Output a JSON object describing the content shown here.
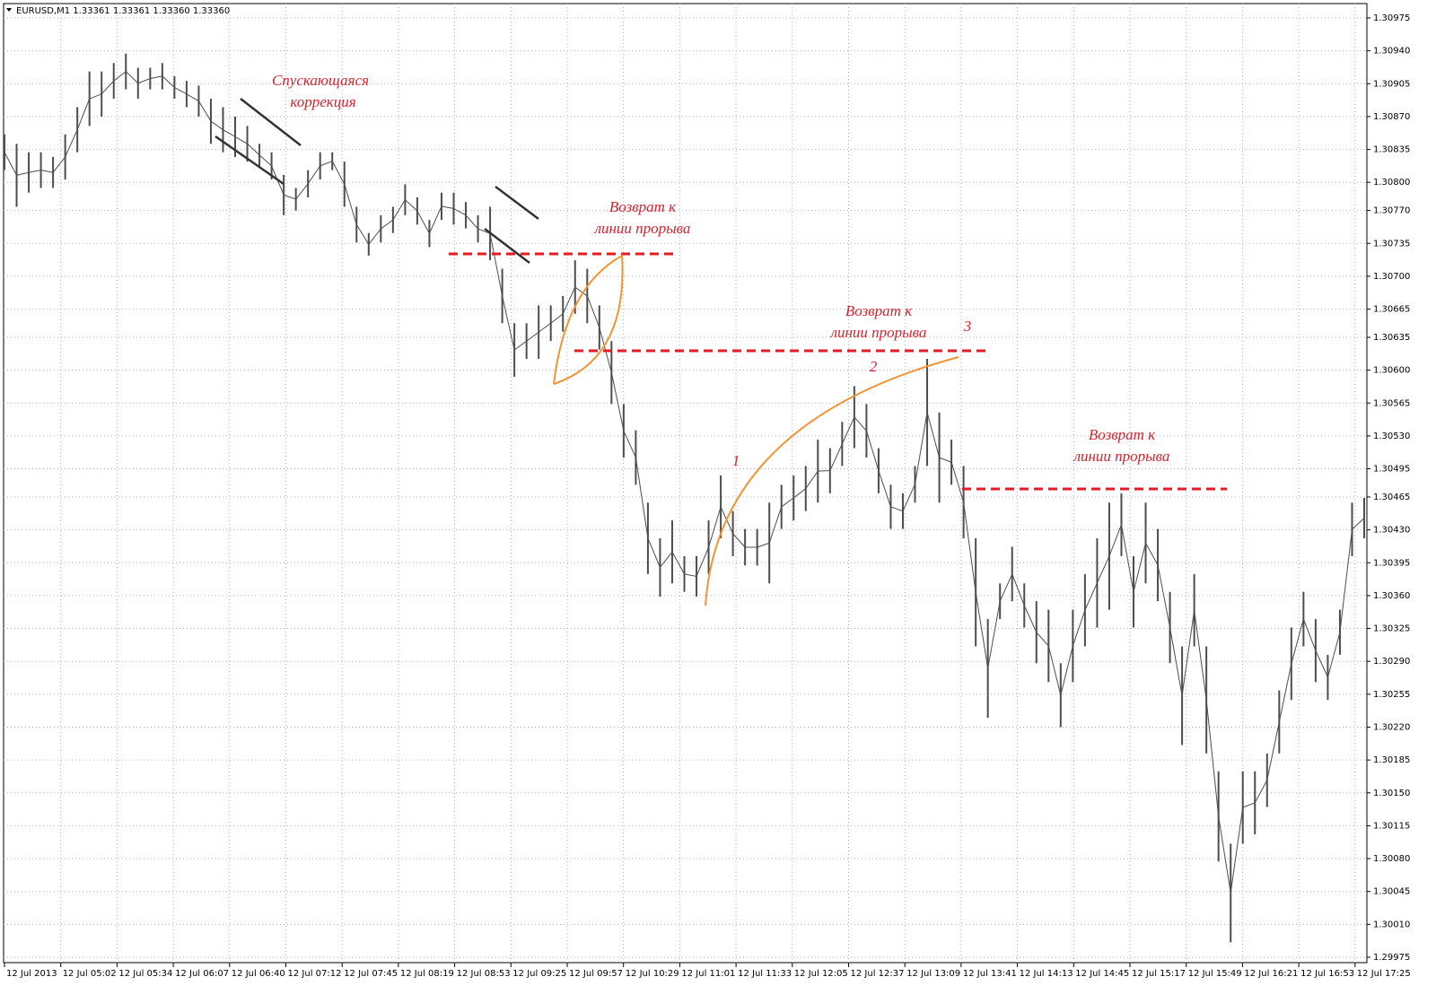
{
  "chart_data": {
    "type": "ohlc",
    "title": "EURUSD,M1  1.33361 1.33361 1.33360 1.33360",
    "color": "#4d4d4d",
    "grid": true,
    "ylim": [
      1.29975,
      1.30975
    ],
    "yticks": [
      1.30975,
      {
        "value": 1.3094,
        "label": "1.30940"
      },
      1.30905,
      {
        "value": 1.3087,
        "label": "1.30870"
      },
      1.30835,
      {
        "value": 1.308,
        "label": "1.30800"
      },
      {
        "value": 1.3077,
        "label": "1.30770"
      },
      1.30735,
      {
        "value": 1.307,
        "label": "1.30700"
      },
      1.30665,
      1.30635,
      {
        "value": 1.306,
        "label": "1.30600"
      },
      1.30565,
      {
        "value": 1.3053,
        "label": "1.30530"
      },
      1.30495,
      1.30465,
      {
        "value": 1.3043,
        "label": "1.30430"
      },
      1.30395,
      {
        "value": 1.3036,
        "label": "1.30360"
      },
      1.30325,
      {
        "value": 1.3029,
        "label": "1.30290"
      },
      1.30255,
      {
        "value": 1.3022,
        "label": "1.30220"
      },
      1.30185,
      {
        "value": 1.3015,
        "label": "1.30150"
      },
      1.30115,
      {
        "value": 1.3008,
        "label": "1.30080"
      },
      1.30045,
      {
        "value": 1.3001,
        "label": "1.30010"
      },
      1.29975
    ],
    "categories": [
      "12 Jul 2013",
      "12 Jul 05:02",
      "12 Jul 05:34",
      "12 Jul 06:07",
      "12 Jul 06:40",
      "12 Jul 07:12",
      "12 Jul 07:45",
      "12 Jul 08:19",
      "12 Jul 08:53",
      "12 Jul 09:25",
      "12 Jul 09:57",
      "12 Jul 10:29",
      "12 Jul 11:01",
      "12 Jul 11:33",
      "12 Jul 12:05",
      "12 Jul 12:37",
      "12 Jul 13:09",
      "12 Jul 13:41",
      "12 Jul 14:13",
      "12 Jul 14:45",
      "12 Jul 15:17",
      "12 Jul 15:49",
      "12 Jul 16:21",
      "12 Jul 16:53",
      "12 Jul 17:25"
    ],
    "high": [
      1.30851,
      1.30841,
      1.30832,
      1.30832,
      1.30827,
      1.30851,
      1.3088,
      1.30918,
      1.30918,
      1.30927,
      1.30937,
      1.30922,
      1.30922,
      1.30927,
      1.30913,
      1.30908,
      1.30903,
      1.30889,
      1.3088,
      1.3087,
      1.3086,
      1.30841,
      1.30832,
      1.30808,
      1.30794,
      1.30813,
      1.30832,
      1.30832,
      1.30822,
      1.30774,
      1.30746,
      1.30765,
      1.30774,
      1.30798,
      1.30784,
      1.3076,
      1.30789,
      1.30789,
      1.30779,
      1.30765,
      1.30774,
      1.30708,
      1.3065,
      1.3065,
      1.30669,
      1.30669,
      1.30679,
      1.30717,
      1.30708,
      1.30669,
      1.30631,
      1.30564,
      1.30536,
      1.30459,
      1.30421,
      1.3044,
      1.30402,
      1.30402,
      1.3044,
      1.30488,
      1.3045,
      1.30431,
      1.30431,
      1.30459,
      1.30478,
      1.30488,
      1.30498,
      1.30526,
      1.30517,
      1.30545,
      1.30583,
      1.30564,
      1.30517,
      1.30478,
      1.30469,
      1.30498,
      1.30612,
      1.30555,
      1.30526,
      1.30498,
      1.30421,
      1.30335,
      1.30373,
      1.30412,
      1.30373,
      1.30354,
      1.30345,
      1.30288,
      1.30345,
      1.30383,
      1.30421,
      1.30459,
      1.30469,
      1.30402,
      1.30459,
      1.30431,
      1.30364,
      1.30306,
      1.30383,
      1.30306,
      1.30173,
      1.30096,
      1.30173,
      1.30173,
      1.30192,
      1.30259,
      1.30326,
      1.30364,
      1.30335,
      1.30297,
      1.30345,
      1.30459,
      1.30464
    ],
    "low": [
      1.30813,
      1.30774,
      1.30789,
      1.30794,
      1.30794,
      1.30803,
      1.30832,
      1.3086,
      1.3087,
      1.30889,
      1.30899,
      1.30889,
      1.30899,
      1.30899,
      1.30889,
      1.3088,
      1.3087,
      1.30841,
      1.30832,
      1.30827,
      1.30822,
      1.30817,
      1.30803,
      1.30765,
      1.3077,
      1.30784,
      1.30803,
      1.30813,
      1.30774,
      1.30736,
      1.30722,
      1.30736,
      1.30746,
      1.30765,
      1.30755,
      1.30731,
      1.3076,
      1.30755,
      1.30751,
      1.30736,
      1.30717,
      1.3065,
      1.30593,
      1.30612,
      1.30612,
      1.30631,
      1.30641,
      1.3066,
      1.3065,
      1.30622,
      1.30564,
      1.30507,
      1.30478,
      1.30383,
      1.30359,
      1.30373,
      1.30364,
      1.30359,
      1.30383,
      1.30421,
      1.30402,
      1.30392,
      1.30392,
      1.30373,
      1.30431,
      1.3044,
      1.3045,
      1.30459,
      1.30469,
      1.30498,
      1.30517,
      1.30507,
      1.30469,
      1.30431,
      1.30431,
      1.30459,
      1.30498,
      1.30459,
      1.30478,
      1.30421,
      1.30306,
      1.3023,
      1.30335,
      1.30354,
      1.30326,
      1.30288,
      1.30268,
      1.3022,
      1.30268,
      1.30306,
      1.30326,
      1.30345,
      1.30402,
      1.30326,
      1.30373,
      1.30354,
      1.30288,
      1.30201,
      1.30306,
      1.30192,
      1.30077,
      1.29991,
      1.30096,
      1.30106,
      1.30135,
      1.30192,
      1.30249,
      1.30306,
      1.30268,
      1.30249,
      1.30297,
      1.30402,
      1.30421
    ],
    "annotations": [
      "Спускающаяся",
      "коррекция",
      "Возврат к",
      "линии прорыва",
      "Возврат к",
      "линии прорыва",
      "Возврат к",
      "линии прорыва",
      "1",
      "2",
      "3"
    ]
  }
}
